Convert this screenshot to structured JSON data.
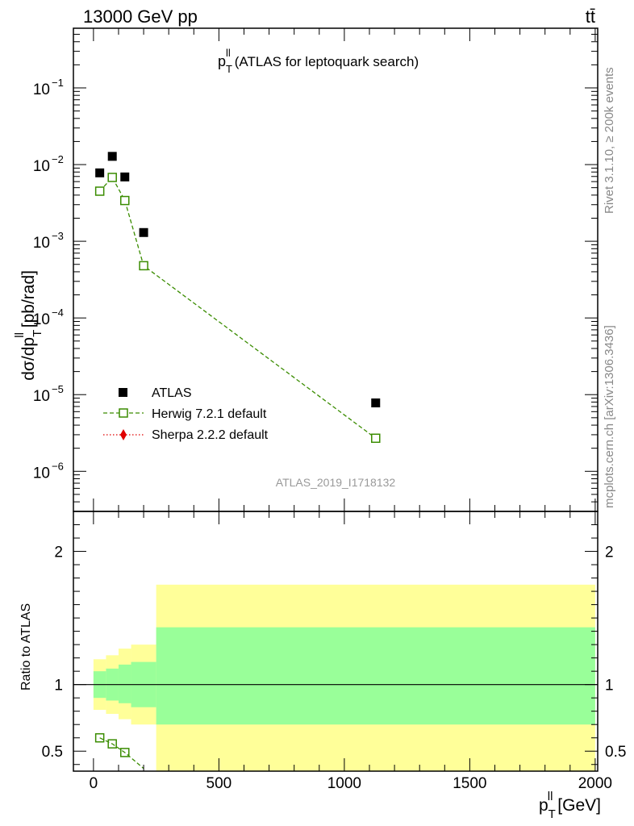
{
  "header": {
    "left": "13000 GeV pp",
    "right": "tt̄"
  },
  "side_labels": {
    "rivet": "Rivet 3.1.10, ≥ 200k events",
    "mcplots": "mcplots.cern.ch [arXiv:1306.3436]"
  },
  "chart_data": [
    {
      "type": "scatter",
      "panel": "main",
      "title_main": "p",
      "title_sup": "ll",
      "title_sub": "T",
      "title_rest": "(ATLAS for leptoquark search)",
      "ylabel": "dσ/dp  T [pb/rad]",
      "ylabel_parts": {
        "pre": "dσ/dp",
        "sup": "ll",
        "sub": "T",
        "post": " [pb/rad]"
      },
      "yscale": "log",
      "ylim": [
        3e-07,
        0.6
      ],
      "xlim": [
        -80,
        2010
      ],
      "y_ticks": [
        {
          "value": 1e-06,
          "base": "10",
          "exp": "−6"
        },
        {
          "value": 1e-05,
          "base": "10",
          "exp": "−5"
        },
        {
          "value": 0.0001,
          "base": "10",
          "exp": "−4"
        },
        {
          "value": 0.001,
          "base": "10",
          "exp": "−3"
        },
        {
          "value": 0.01,
          "base": "10",
          "exp": "−2"
        },
        {
          "value": 0.1,
          "base": "10",
          "exp": "−1"
        }
      ],
      "watermark": "ATLAS_2019_I1718132",
      "series": [
        {
          "name": "ATLAS",
          "marker": "filled-square",
          "color": "#000000",
          "x": [
            25,
            75,
            125,
            200,
            1125
          ],
          "y": [
            0.0078,
            0.0128,
            0.0069,
            0.0013,
            7.8e-06
          ]
        },
        {
          "name": "Herwig 7.2.1 default",
          "marker": "open-square",
          "line": "dashed",
          "color": "#3a8c00",
          "x": [
            25,
            75,
            125,
            200,
            1125
          ],
          "y": [
            0.0045,
            0.0068,
            0.0034,
            0.00048,
            2.7e-06
          ]
        },
        {
          "name": "Sherpa 2.2.2 default",
          "marker": "diamond",
          "line": "dotted",
          "color": "#e00000",
          "x": [],
          "y": []
        }
      ]
    },
    {
      "type": "line",
      "panel": "ratio",
      "ylabel": "Ratio to ATLAS",
      "xlabel_parts": {
        "pre": "p",
        "sup": "ll",
        "sub": "T",
        "post": " [GeV]"
      },
      "ylim": [
        0.35,
        2.3
      ],
      "xlim": [
        -80,
        2010
      ],
      "y_ticks": [
        0.5,
        1,
        2
      ],
      "x_ticks": [
        0,
        500,
        1000,
        1500,
        2000
      ],
      "bands": {
        "edges": [
          0,
          50,
          100,
          150,
          250,
          2000
        ],
        "yellow_lo": [
          0.81,
          0.78,
          0.74,
          0.7,
          0.33
        ],
        "yellow_hi": [
          1.19,
          1.22,
          1.27,
          1.3,
          1.75
        ],
        "green_lo": [
          0.9,
          0.88,
          0.86,
          0.83,
          0.7
        ],
        "green_hi": [
          1.1,
          1.12,
          1.15,
          1.17,
          1.43
        ]
      },
      "series": [
        {
          "name": "Herwig 7.2.1 default",
          "color": "#3a8c00",
          "x": [
            25,
            75,
            125,
            200
          ],
          "y": [
            0.6,
            0.555,
            0.49,
            0.37
          ]
        }
      ]
    }
  ],
  "colors": {
    "yellow_band": "#ffff99",
    "green_band": "#99ff99",
    "herwig": "#3a8c00",
    "sherpa": "#e00000",
    "watermark": "#999999",
    "side_text": "#888888"
  }
}
